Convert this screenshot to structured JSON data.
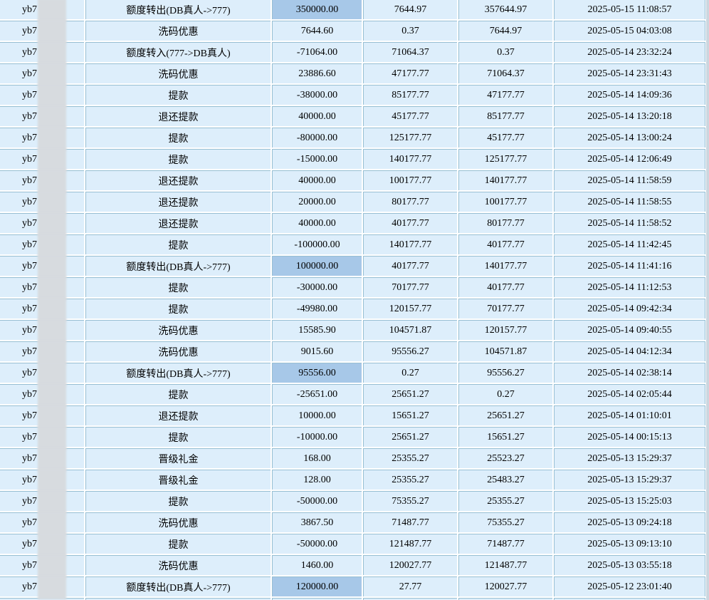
{
  "colors": {
    "cell_background": "#ddeefb",
    "amount_highlight_background": "#a7c8e8",
    "grid_line": "#97bfd3",
    "redaction_patch": "#d7dbdf",
    "right_strip": "#cbd6df",
    "text": "#000000"
  },
  "table": {
    "rows": [
      {
        "username": "yb7",
        "type": "额度转出(DB真人->777)",
        "amount": "350000.00",
        "amount_highlighted": true,
        "balance_before": "7644.97",
        "balance_after": "357644.97",
        "time": "2025-05-15 11:08:57"
      },
      {
        "username": "yb7",
        "type": "洗码优惠",
        "amount": "7644.60",
        "amount_highlighted": false,
        "balance_before": "0.37",
        "balance_after": "7644.97",
        "time": "2025-05-15 04:03:08"
      },
      {
        "username": "yb7",
        "type": "额度转入(777->DB真人)",
        "amount": "-71064.00",
        "amount_highlighted": false,
        "balance_before": "71064.37",
        "balance_after": "0.37",
        "time": "2025-05-14 23:32:24"
      },
      {
        "username": "yb7",
        "type": "洗码优惠",
        "amount": "23886.60",
        "amount_highlighted": false,
        "balance_before": "47177.77",
        "balance_after": "71064.37",
        "time": "2025-05-14 23:31:43"
      },
      {
        "username": "yb7",
        "type": "提款",
        "amount": "-38000.00",
        "amount_highlighted": false,
        "balance_before": "85177.77",
        "balance_after": "47177.77",
        "time": "2025-05-14 14:09:36"
      },
      {
        "username": "yb7",
        "type": "退还提款",
        "amount": "40000.00",
        "amount_highlighted": false,
        "balance_before": "45177.77",
        "balance_after": "85177.77",
        "time": "2025-05-14 13:20:18"
      },
      {
        "username": "yb7",
        "type": "提款",
        "amount": "-80000.00",
        "amount_highlighted": false,
        "balance_before": "125177.77",
        "balance_after": "45177.77",
        "time": "2025-05-14 13:00:24"
      },
      {
        "username": "yb7",
        "type": "提款",
        "amount": "-15000.00",
        "amount_highlighted": false,
        "balance_before": "140177.77",
        "balance_after": "125177.77",
        "time": "2025-05-14 12:06:49"
      },
      {
        "username": "yb7",
        "type": "退还提款",
        "amount": "40000.00",
        "amount_highlighted": false,
        "balance_before": "100177.77",
        "balance_after": "140177.77",
        "time": "2025-05-14 11:58:59"
      },
      {
        "username": "yb7",
        "type": "退还提款",
        "amount": "20000.00",
        "amount_highlighted": false,
        "balance_before": "80177.77",
        "balance_after": "100177.77",
        "time": "2025-05-14 11:58:55"
      },
      {
        "username": "yb7",
        "type": "退还提款",
        "amount": "40000.00",
        "amount_highlighted": false,
        "balance_before": "40177.77",
        "balance_after": "80177.77",
        "time": "2025-05-14 11:58:52"
      },
      {
        "username": "yb7",
        "type": "提款",
        "amount": "-100000.00",
        "amount_highlighted": false,
        "balance_before": "140177.77",
        "balance_after": "40177.77",
        "time": "2025-05-14 11:42:45"
      },
      {
        "username": "yb7",
        "type": "额度转出(DB真人->777)",
        "amount": "100000.00",
        "amount_highlighted": true,
        "balance_before": "40177.77",
        "balance_after": "140177.77",
        "time": "2025-05-14 11:41:16"
      },
      {
        "username": "yb7",
        "type": "提款",
        "amount": "-30000.00",
        "amount_highlighted": false,
        "balance_before": "70177.77",
        "balance_after": "40177.77",
        "time": "2025-05-14 11:12:53"
      },
      {
        "username": "yb7",
        "type": "提款",
        "amount": "-49980.00",
        "amount_highlighted": false,
        "balance_before": "120157.77",
        "balance_after": "70177.77",
        "time": "2025-05-14 09:42:34"
      },
      {
        "username": "yb7",
        "type": "洗码优惠",
        "amount": "15585.90",
        "amount_highlighted": false,
        "balance_before": "104571.87",
        "balance_after": "120157.77",
        "time": "2025-05-14 09:40:55"
      },
      {
        "username": "yb7",
        "type": "洗码优惠",
        "amount": "9015.60",
        "amount_highlighted": false,
        "balance_before": "95556.27",
        "balance_after": "104571.87",
        "time": "2025-05-14 04:12:34"
      },
      {
        "username": "yb7",
        "type": "额度转出(DB真人->777)",
        "amount": "95556.00",
        "amount_highlighted": true,
        "balance_before": "0.27",
        "balance_after": "95556.27",
        "time": "2025-05-14 02:38:14"
      },
      {
        "username": "yb7",
        "type": "提款",
        "amount": "-25651.00",
        "amount_highlighted": false,
        "balance_before": "25651.27",
        "balance_after": "0.27",
        "time": "2025-05-14 02:05:44"
      },
      {
        "username": "yb7",
        "type": "退还提款",
        "amount": "10000.00",
        "amount_highlighted": false,
        "balance_before": "15651.27",
        "balance_after": "25651.27",
        "time": "2025-05-14 01:10:01"
      },
      {
        "username": "yb7",
        "type": "提款",
        "amount": "-10000.00",
        "amount_highlighted": false,
        "balance_before": "25651.27",
        "balance_after": "15651.27",
        "time": "2025-05-14 00:15:13"
      },
      {
        "username": "yb7",
        "type": "晋级礼金",
        "amount": "168.00",
        "amount_highlighted": false,
        "balance_before": "25355.27",
        "balance_after": "25523.27",
        "time": "2025-05-13 15:29:37"
      },
      {
        "username": "yb7",
        "type": "晋级礼金",
        "amount": "128.00",
        "amount_highlighted": false,
        "balance_before": "25355.27",
        "balance_after": "25483.27",
        "time": "2025-05-13 15:29:37"
      },
      {
        "username": "yb7",
        "type": "提款",
        "amount": "-50000.00",
        "amount_highlighted": false,
        "balance_before": "75355.27",
        "balance_after": "25355.27",
        "time": "2025-05-13 15:25:03"
      },
      {
        "username": "yb7",
        "type": "洗码优惠",
        "amount": "3867.50",
        "amount_highlighted": false,
        "balance_before": "71487.77",
        "balance_after": "75355.27",
        "time": "2025-05-13 09:24:18"
      },
      {
        "username": "yb7",
        "type": "提款",
        "amount": "-50000.00",
        "amount_highlighted": false,
        "balance_before": "121487.77",
        "balance_after": "71487.77",
        "time": "2025-05-13 09:13:10"
      },
      {
        "username": "yb7",
        "type": "洗码优惠",
        "amount": "1460.00",
        "amount_highlighted": false,
        "balance_before": "120027.77",
        "balance_after": "121487.77",
        "time": "2025-05-13 03:55:18"
      },
      {
        "username": "yb7",
        "type": "额度转出(DB真人->777)",
        "amount": "120000.00",
        "amount_highlighted": true,
        "balance_before": "27.77",
        "balance_after": "120027.77",
        "time": "2025-05-12 23:01:40"
      }
    ]
  }
}
